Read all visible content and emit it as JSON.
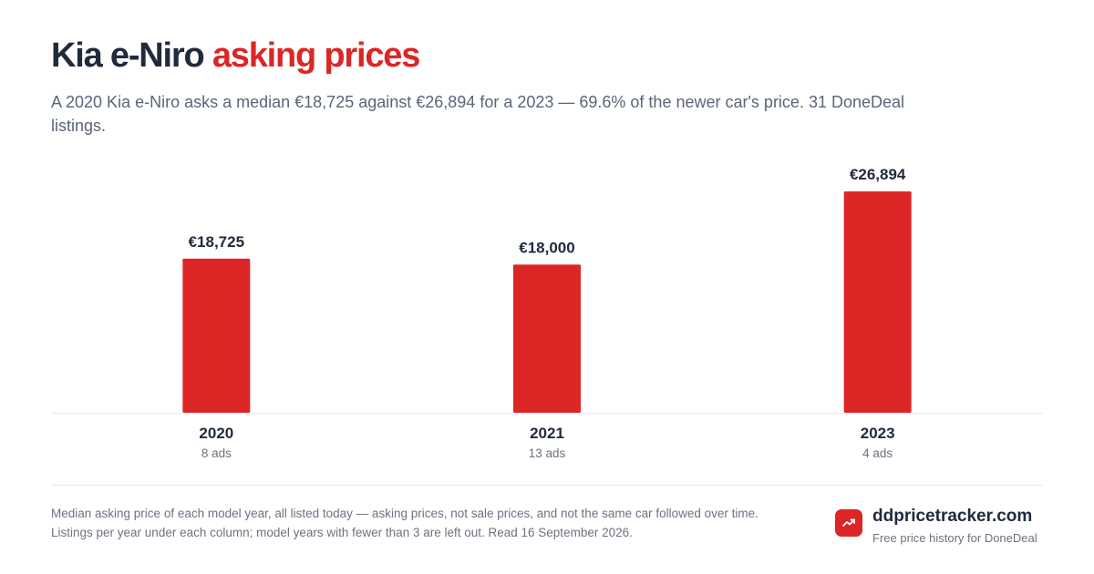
{
  "header": {
    "title_main": "Kia e-Niro",
    "title_accent": "asking prices",
    "subtitle": "A 2020 Kia e-Niro asks a median €18,725 against €26,894 for a 2023 — 69.6% of the newer car's price. 31 DoneDeal listings."
  },
  "chart_data": {
    "type": "bar",
    "categories": [
      "2020",
      "2021",
      "2023"
    ],
    "values": [
      18725,
      18000,
      26894
    ],
    "value_labels": [
      "€18,725",
      "€18,000",
      "€26,894"
    ],
    "counts": [
      "8 ads",
      "13 ads",
      "4 ads"
    ],
    "ylim": [
      0,
      31000
    ],
    "grid": false
  },
  "colors": {
    "accent": "#dc2626",
    "text": "#1f2a3c",
    "muted": "#6b7280"
  },
  "footer": {
    "note": "Median asking price of each model year, all listed today — asking prices, not sale prices, and not the same car followed over time. Listings per year under each column; model years with fewer than 3 are left out. Read 16 September 2026.",
    "brand_name": "ddpricetracker.com",
    "brand_tagline": "Free price history for DoneDeal",
    "brand_icon": "trending-up-icon"
  }
}
